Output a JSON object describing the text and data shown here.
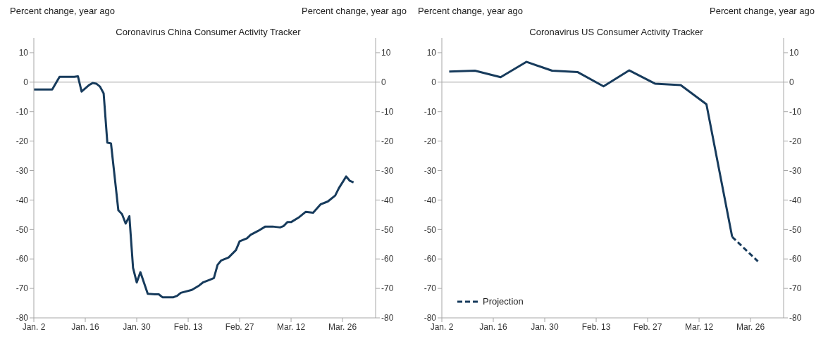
{
  "chart_data": [
    {
      "type": "line",
      "title": "Coronavirus  China Consumer  Activity Tracker",
      "ylabel": "Percent change, year ago",
      "y2label": "Percent change, year ago",
      "xlim": [
        "--01-02",
        "--04-04"
      ],
      "xticks": [
        {
          "value": "--01-02",
          "label": "Jan. 2"
        },
        {
          "value": "--01-16",
          "label": "Jan. 16"
        },
        {
          "value": "--01-30",
          "label": "Jan. 30"
        },
        {
          "value": "--02-13",
          "label": "Feb. 13"
        },
        {
          "value": "--02-27",
          "label": "Feb. 27"
        },
        {
          "value": "--03-12",
          "label": "Mar. 12"
        },
        {
          "value": "--03-26",
          "label": "Mar. 26"
        }
      ],
      "ylim": [
        -80,
        15
      ],
      "yticks": [
        -80,
        -70,
        -60,
        -50,
        -40,
        -30,
        -20,
        -10,
        0,
        10
      ],
      "y2lim": [
        -80,
        15
      ],
      "y2ticks": [
        -80,
        -70,
        -60,
        -50,
        -40,
        -30,
        -20,
        -10,
        0,
        10
      ],
      "ref_lines": [
        {
          "axis": "y",
          "value": 0,
          "color": "#a6a6a6"
        }
      ],
      "legend": false,
      "series": [
        {
          "color": "#173b5c",
          "x": [
            "--01-02",
            "--01-07",
            "--01-09",
            "--01-13",
            "--01-14",
            "--01-15",
            "--01-17",
            "--01-18",
            "--01-19",
            "--01-20",
            "--01-21",
            "--01-22",
            "--01-23",
            "--01-25",
            "--01-26",
            "--01-27",
            "--01-28",
            "--01-29",
            "--01-30",
            "--01-31",
            "--02-02",
            "--02-04",
            "--02-05",
            "--02-06",
            "--02-09",
            "--02-10",
            "--02-11",
            "--02-14",
            "--02-16",
            "--02-17",
            "--02-19",
            "--02-20",
            "--02-21",
            "--02-22",
            "--02-24",
            "--02-26",
            "--02-27",
            "--02-29",
            "--03-01",
            "--03-03",
            "--03-05",
            "--03-07",
            "--03-09",
            "--03-10",
            "--03-11",
            "--03-12",
            "--03-14",
            "--03-16",
            "--03-18",
            "--03-20",
            "--03-22",
            "--03-24",
            "--03-25",
            "--03-27",
            "--03-28",
            "--03-29"
          ],
          "values": [
            -2.5,
            -2.5,
            1.8,
            1.8,
            2,
            -3.2,
            -1,
            -0.3,
            -0.5,
            -1.5,
            -3.8,
            -20.5,
            -20.8,
            -43.5,
            -44.8,
            -48,
            -45.5,
            -63,
            -68,
            -64.5,
            -71.8,
            -72,
            -72,
            -73,
            -73,
            -72.5,
            -71.5,
            -70.5,
            -69,
            -68,
            -67,
            -66.5,
            -62,
            -60.5,
            -59.5,
            -57,
            -54,
            -53,
            -51.8,
            -50.5,
            -49,
            -49,
            -49.3,
            -48.8,
            -47.5,
            -47.5,
            -46,
            -44,
            -44.3,
            -41.5,
            -40.5,
            -38.5,
            -36,
            -32,
            -33.5,
            -34
          ]
        }
      ]
    },
    {
      "type": "line",
      "title": "Coronavirus  US Consumer  Activity Tracker",
      "ylabel": "Percent change, year ago",
      "y2label": "Percent change, year ago",
      "xlim": [
        "--01-02",
        "--04-04"
      ],
      "xticks": [
        {
          "value": "--01-02",
          "label": "Jan. 2"
        },
        {
          "value": "--01-16",
          "label": "Jan. 16"
        },
        {
          "value": "--01-30",
          "label": "Jan. 30"
        },
        {
          "value": "--02-13",
          "label": "Feb. 13"
        },
        {
          "value": "--02-27",
          "label": "Feb. 27"
        },
        {
          "value": "--03-12",
          "label": "Mar. 12"
        },
        {
          "value": "--03-26",
          "label": "Mar. 26"
        }
      ],
      "ylim": [
        -80,
        15
      ],
      "yticks": [
        -80,
        -70,
        -60,
        -50,
        -40,
        -30,
        -20,
        -10,
        0,
        10
      ],
      "y2lim": [
        -80,
        15
      ],
      "y2ticks": [
        -80,
        -70,
        -60,
        -50,
        -40,
        -30,
        -20,
        -10,
        0,
        10
      ],
      "ref_lines": [
        {
          "axis": "y",
          "value": 0,
          "color": "#a6a6a6"
        }
      ],
      "legend": "bottom left",
      "series": [
        {
          "color": "#173b5c",
          "x": [
            "--01-04",
            "--01-11",
            "--01-18",
            "--01-25",
            "--02-01",
            "--02-08",
            "--02-15",
            "--02-22",
            "--02-29",
            "--03-07",
            "--03-14",
            "--03-21"
          ],
          "values": [
            3.6,
            3.9,
            1.7,
            6.9,
            3.9,
            3.4,
            -1.4,
            4,
            -0.5,
            -1,
            -7.5,
            -52.5
          ]
        },
        {
          "name": "Projection",
          "color": "#173b5c",
          "line_style": "dashed",
          "x": [
            "--03-21",
            "--03-28"
          ],
          "values": [
            -52.5,
            -60.8
          ]
        }
      ]
    }
  ]
}
